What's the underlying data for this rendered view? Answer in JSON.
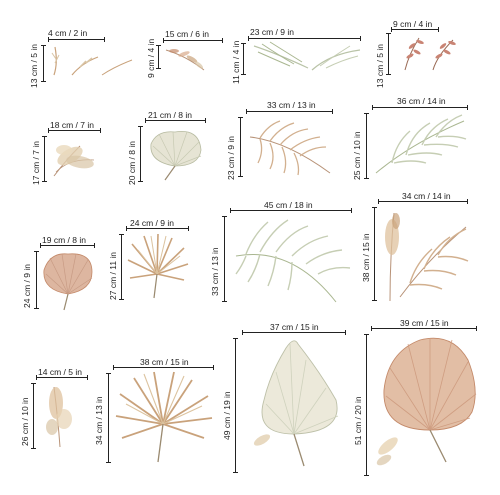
{
  "colors": {
    "sage": "#b9c3a7",
    "beige": "#d9c5a5",
    "tan": "#c9a27b",
    "terracotta": "#c48a6a",
    "cream": "#e9e3d2",
    "stem": "#9a8a70"
  },
  "items": [
    {
      "w": "4 cm / 2 in",
      "h": "13 cm / 5 in",
      "motif": "dried-stems-icon"
    },
    {
      "w": "15 cm / 6 in",
      "h": "9 cm / 4 in",
      "motif": "dried-sprig-icon"
    },
    {
      "w": "23 cm / 9 in",
      "h": "11 cm / 4 in",
      "motif": "grass-sprays-icon"
    },
    {
      "w": "9 cm / 4 in",
      "h": "13 cm / 5 in",
      "motif": "pink-leaf-sprigs-icon"
    },
    {
      "w": "18 cm / 7 in",
      "h": "17 cm / 7 in",
      "motif": "pampas-plume-icon"
    },
    {
      "w": "21 cm / 8 in",
      "h": "20 cm / 8 in",
      "motif": "round-palm-leaf-icon"
    },
    {
      "w": "33 cm / 13 in",
      "h": "23 cm / 9 in",
      "motif": "beige-palm-frond-icon"
    },
    {
      "w": "36 cm / 14 in",
      "h": "25 cm / 10 in",
      "motif": "sage-palm-frond-icon"
    },
    {
      "w": "19 cm / 8 in",
      "h": "24 cm / 9 in",
      "motif": "pink-fan-palm-icon"
    },
    {
      "w": "24 cm / 9 in",
      "h": "27 cm / 11 in",
      "motif": "tan-fan-palm-icon"
    },
    {
      "w": "45 cm / 18 in",
      "h": "33 cm / 13 in",
      "motif": "large-sage-frond-icon"
    },
    {
      "w": "34 cm / 14 in",
      "h": "38 cm / 15 in",
      "motif": "frond-and-pampas-icon"
    },
    {
      "w": "14 cm / 5 in",
      "h": "26 cm / 10 in",
      "motif": "pampas-stem-icon"
    },
    {
      "w": "38 cm / 15 in",
      "h": "34 cm / 13 in",
      "motif": "large-fan-palm-icon"
    },
    {
      "w": "37 cm / 15 in",
      "h": "49 cm / 19 in",
      "motif": "cream-palm-leaf-icon"
    },
    {
      "w": "39 cm / 15 in",
      "h": "51 cm / 20 in",
      "motif": "terracotta-fan-leaf-icon"
    }
  ]
}
